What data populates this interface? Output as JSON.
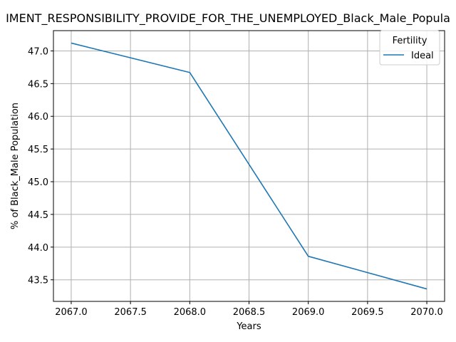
{
  "chart_data": {
    "type": "line",
    "title": "IMENT_RESPONSIBILITY_PROVIDE_FOR_THE_UNEMPLOYED_Black_Male_Popula",
    "xlabel": "Years",
    "ylabel": "% of Black_Male Population",
    "x": [
      2067,
      2068,
      2069,
      2070
    ],
    "series": [
      {
        "name": "Ideal",
        "values": [
          47.12,
          46.67,
          43.86,
          43.36
        ],
        "color": "#1f77b4"
      }
    ],
    "xlim": [
      2066.85,
      2070.15
    ],
    "ylim": [
      43.17,
      47.31
    ],
    "xticks": [
      2067.0,
      2067.5,
      2068.0,
      2068.5,
      2069.0,
      2069.5,
      2070.0
    ],
    "xtick_labels": [
      "2067.0",
      "2067.5",
      "2068.0",
      "2068.5",
      "2069.0",
      "2069.5",
      "2070.0"
    ],
    "yticks": [
      43.5,
      44.0,
      44.5,
      45.0,
      45.5,
      46.0,
      46.5,
      47.0
    ],
    "ytick_labels": [
      "43.5",
      "44.0",
      "44.5",
      "45.0",
      "45.5",
      "46.0",
      "46.5",
      "47.0"
    ],
    "grid": true,
    "legend": {
      "title": "Fertility",
      "position": "top-right"
    }
  }
}
